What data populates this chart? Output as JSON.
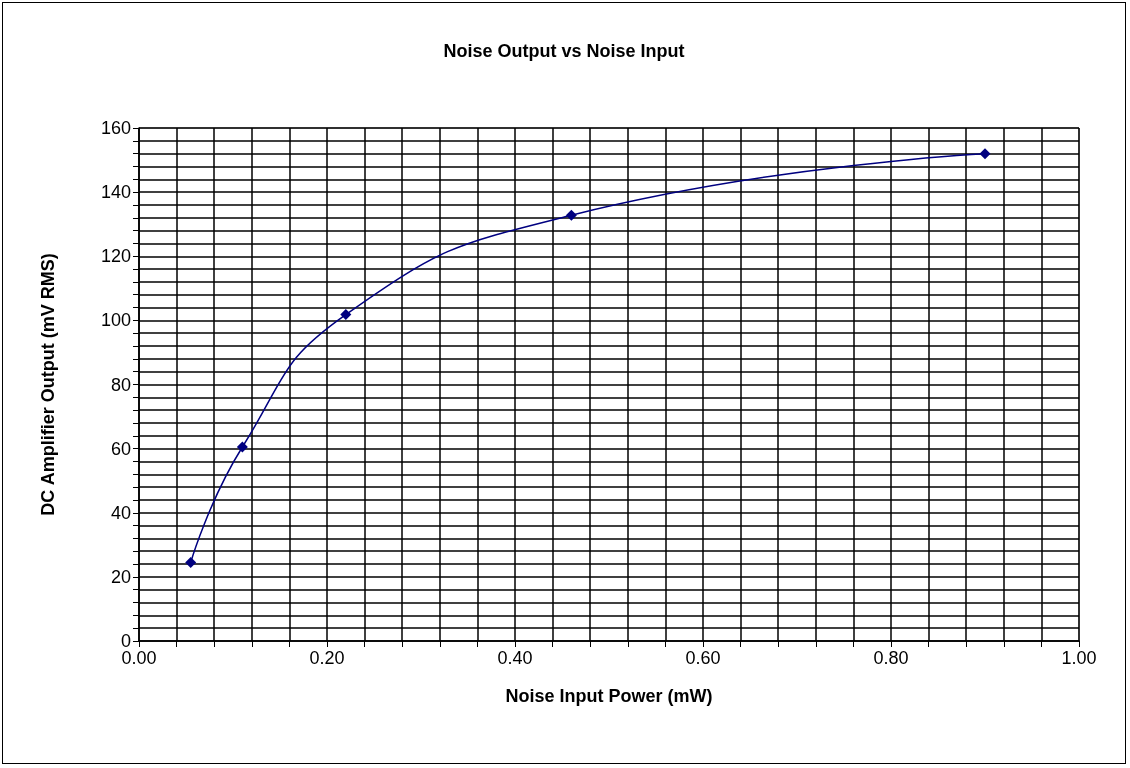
{
  "chart_data": {
    "type": "line",
    "title": "Noise Output vs Noise Input",
    "xlabel": "Noise Input Power (mW)",
    "ylabel": "DC Amplifier Output (mV RMS)",
    "x": [
      0.055,
      0.11,
      0.22,
      0.46,
      0.9
    ],
    "series": [
      {
        "color": "#000080",
        "values": [
          24.5,
          60.5,
          101.8,
          132.8,
          152
        ]
      }
    ],
    "xlim": [
      0,
      1
    ],
    "ylim": [
      0,
      160
    ],
    "xticks": [
      {
        "value": 0,
        "label": "0.00"
      },
      {
        "value": 0.04,
        "label": null
      },
      {
        "value": 0.08,
        "label": null
      },
      {
        "value": 0.12,
        "label": null
      },
      {
        "value": 0.16,
        "label": null
      },
      {
        "value": 0.2,
        "label": "0.20"
      },
      {
        "value": 0.24,
        "label": null
      },
      {
        "value": 0.28,
        "label": null
      },
      {
        "value": 0.32,
        "label": null
      },
      {
        "value": 0.36,
        "label": null
      },
      {
        "value": 0.4,
        "label": "0.40"
      },
      {
        "value": 0.44,
        "label": null
      },
      {
        "value": 0.48,
        "label": null
      },
      {
        "value": 0.52,
        "label": null
      },
      {
        "value": 0.56,
        "label": null
      },
      {
        "value": 0.6,
        "label": "0.60"
      },
      {
        "value": 0.64,
        "label": null
      },
      {
        "value": 0.68,
        "label": null
      },
      {
        "value": 0.72,
        "label": null
      },
      {
        "value": 0.76,
        "label": null
      },
      {
        "value": 0.8,
        "label": "0.80"
      },
      {
        "value": 0.84,
        "label": null
      },
      {
        "value": 0.88,
        "label": null
      },
      {
        "value": 0.92,
        "label": null
      },
      {
        "value": 0.96,
        "label": null
      },
      {
        "value": 1,
        "label": "1.00"
      }
    ],
    "yticks": [
      0,
      {
        "value": 4,
        "label": null
      },
      {
        "value": 8,
        "label": null
      },
      {
        "value": 12,
        "label": null
      },
      {
        "value": 16,
        "label": null
      },
      20,
      {
        "value": 24,
        "label": null
      },
      {
        "value": 28,
        "label": null
      },
      {
        "value": 32,
        "label": null
      },
      {
        "value": 36,
        "label": null
      },
      40,
      {
        "value": 44,
        "label": null
      },
      {
        "value": 48,
        "label": null
      },
      {
        "value": 52,
        "label": null
      },
      {
        "value": 56,
        "label": null
      },
      60,
      {
        "value": 64,
        "label": null
      },
      {
        "value": 68,
        "label": null
      },
      {
        "value": 72,
        "label": null
      },
      {
        "value": 76,
        "label": null
      },
      80,
      {
        "value": 84,
        "label": null
      },
      {
        "value": 88,
        "label": null
      },
      {
        "value": 92,
        "label": null
      },
      {
        "value": 96,
        "label": null
      },
      100,
      {
        "value": 104,
        "label": null
      },
      {
        "value": 108,
        "label": null
      },
      {
        "value": 112,
        "label": null
      },
      {
        "value": 116,
        "label": null
      },
      120,
      {
        "value": 124,
        "label": null
      },
      {
        "value": 128,
        "label": null
      },
      {
        "value": 132,
        "label": null
      },
      {
        "value": 136,
        "label": null
      },
      140,
      {
        "value": 144,
        "label": null
      },
      {
        "value": 148,
        "label": null
      },
      {
        "value": 152,
        "label": null
      },
      {
        "value": 156,
        "label": null
      },
      160
    ],
    "grid": true,
    "marker": "diamond",
    "line_style": "solid"
  }
}
